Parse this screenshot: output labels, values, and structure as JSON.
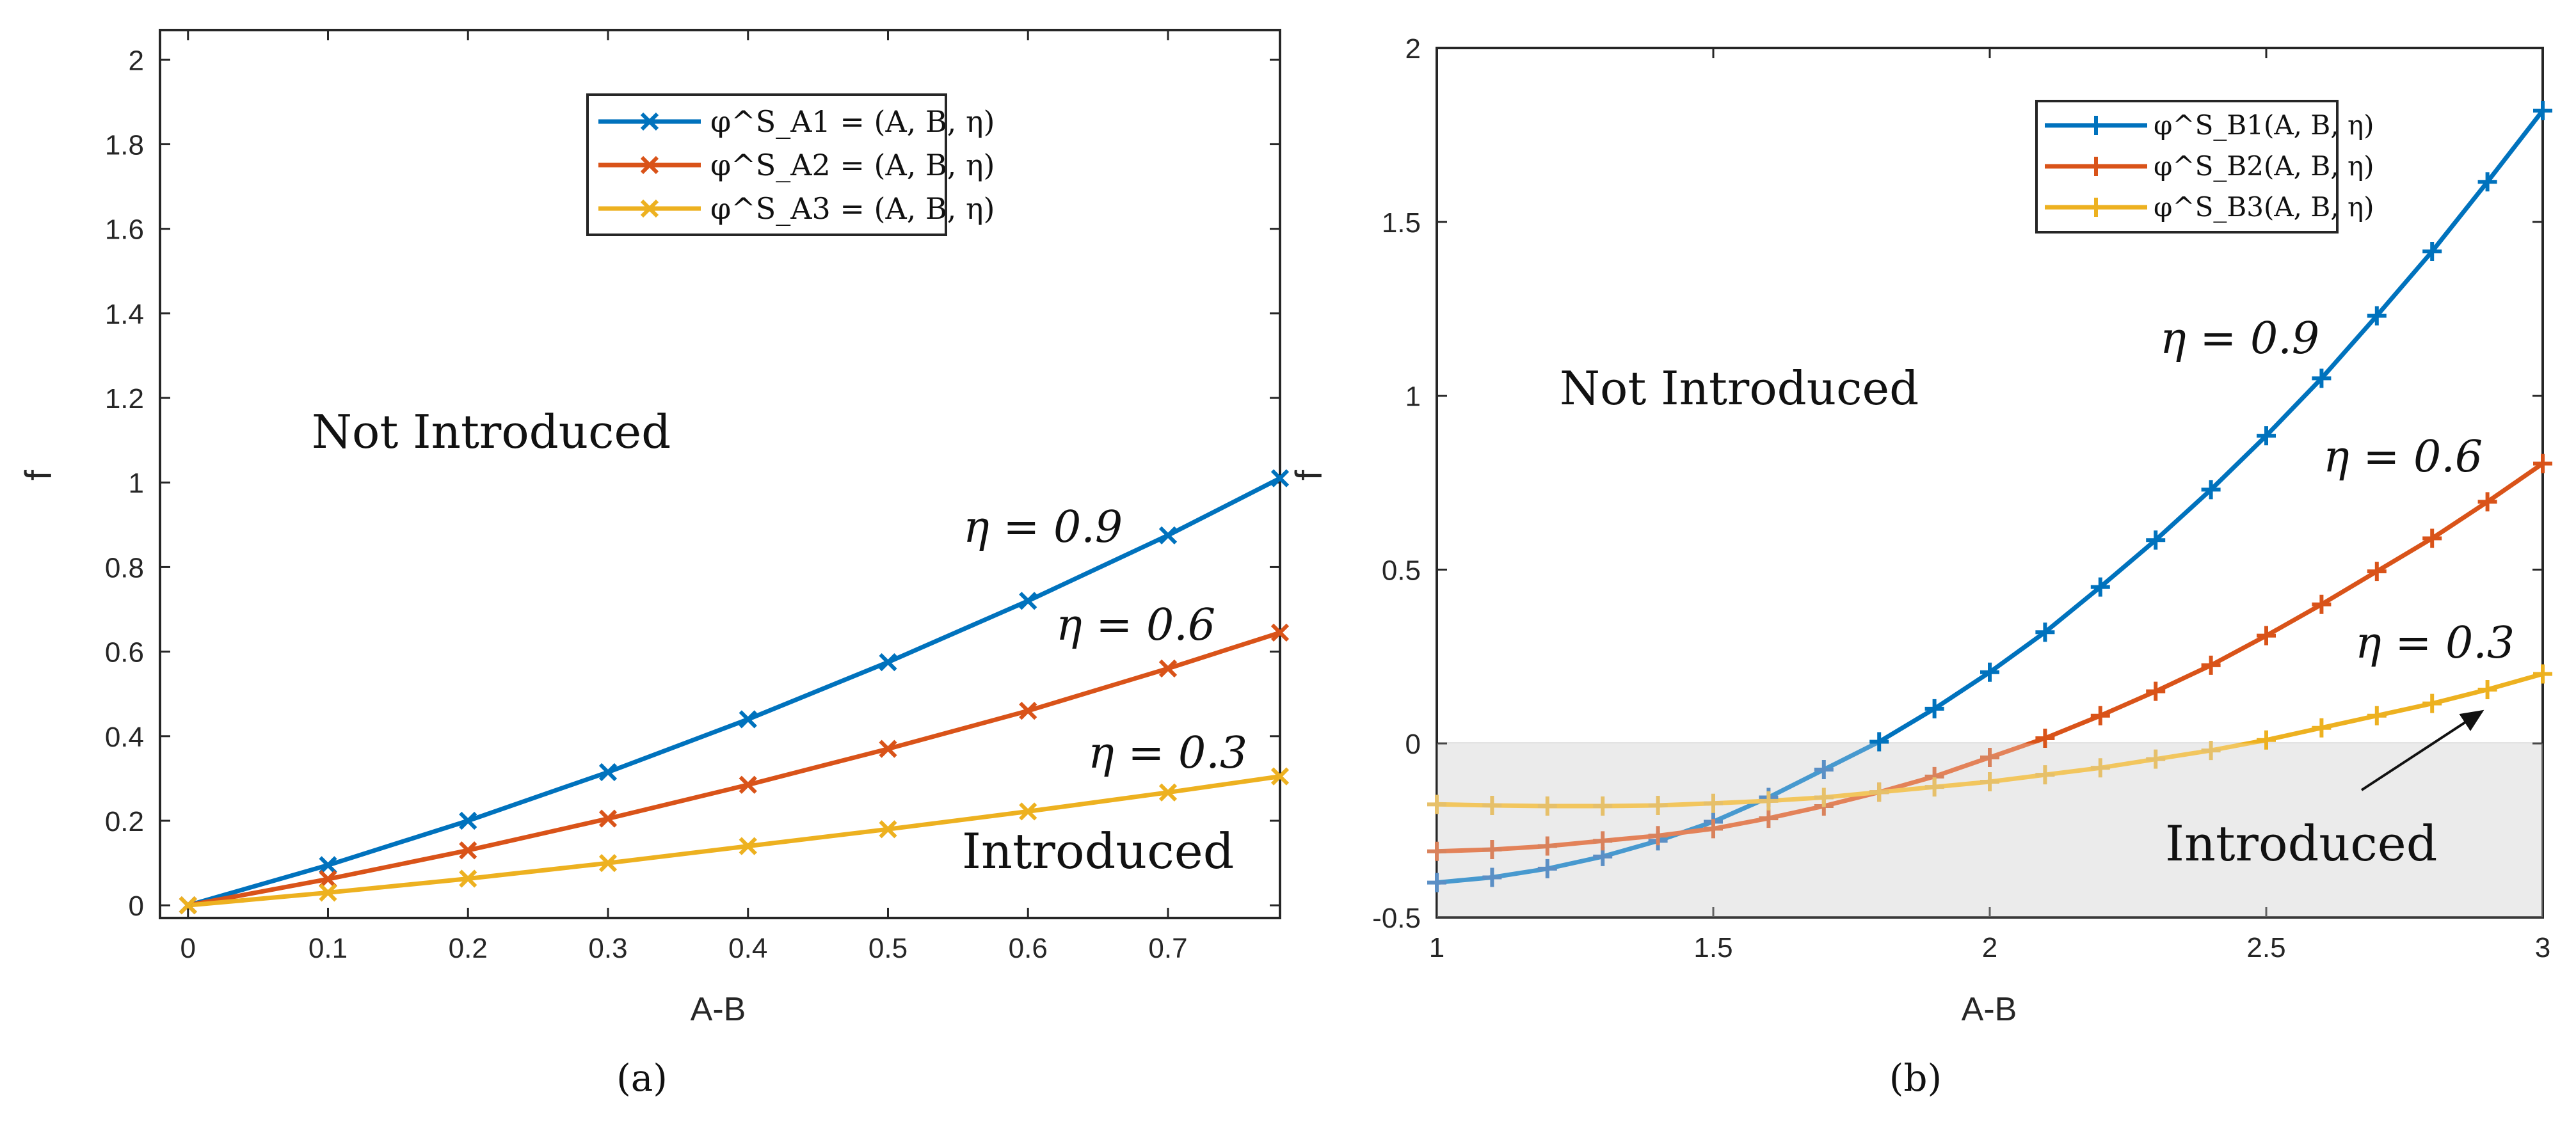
{
  "colors": {
    "blue": "#0072BD",
    "orange": "#D95319",
    "yellow": "#EDB120",
    "axis": "#262626",
    "shade": "#E3E3E3",
    "blue_shaded": "#5B8FC5",
    "orange_shaded": "#D9825C",
    "yellow_shaded": "#E6C06A"
  },
  "chart_data": [
    {
      "type": "line",
      "panel_caption": "(a)",
      "xlabel": "A-B",
      "ylabel": "f",
      "xlim": [
        -0.02,
        0.78
      ],
      "ylim": [
        -0.03,
        2.07
      ],
      "xticks": [
        0,
        0.1,
        0.2,
        0.3,
        0.4,
        0.5,
        0.6,
        0.7
      ],
      "xtick_labels": [
        "0",
        "0.1",
        "0.2",
        "0.3",
        "0.4",
        "0.5",
        "0.6",
        "0.7"
      ],
      "yticks": [
        0,
        0.2,
        0.4,
        0.6,
        0.8,
        1,
        1.2,
        1.4,
        1.6,
        1.8,
        2
      ],
      "ytick_labels": [
        "0",
        "0.2",
        "0.4",
        "0.6",
        "0.8",
        "1",
        "1.2",
        "1.4",
        "1.6",
        "1.8",
        "2"
      ],
      "marker": "x",
      "x": [
        0,
        0.1,
        0.2,
        0.3,
        0.4,
        0.5,
        0.6,
        0.7,
        0.78
      ],
      "series": [
        {
          "name": "φ^S_A1 = (A, B, η)",
          "color_key": "blue",
          "values": [
            0,
            0.095,
            0.2,
            0.315,
            0.44,
            0.575,
            0.72,
            0.875,
            1.01
          ]
        },
        {
          "name": "φ^S_A2 = (A, B, η)",
          "color_key": "orange",
          "values": [
            0,
            0.062,
            0.13,
            0.205,
            0.285,
            0.37,
            0.46,
            0.56,
            0.645
          ]
        },
        {
          "name": "φ^S_A3 = (A, B, η)",
          "color_key": "yellow",
          "values": [
            0,
            0.03,
            0.063,
            0.1,
            0.14,
            0.18,
            0.222,
            0.267,
            0.305
          ]
        }
      ],
      "annotations": [
        "Not Introduced",
        "η = 0.9",
        "η = 0.6",
        "η = 0.3",
        "Introduced"
      ],
      "legend_placement": "top-center"
    },
    {
      "type": "line",
      "panel_caption": "(b)",
      "xlabel": "A-B",
      "ylabel": "f",
      "xlim": [
        1,
        3
      ],
      "ylim": [
        -0.5,
        2
      ],
      "xticks": [
        1,
        1.5,
        2,
        2.5,
        3
      ],
      "xtick_labels": [
        "1",
        "1.5",
        "2",
        "2.5",
        "3"
      ],
      "yticks": [
        -0.5,
        0,
        0.5,
        1,
        1.5,
        2
      ],
      "ytick_labels": [
        "-0.5",
        "0",
        "0.5",
        "1",
        "1.5",
        "2"
      ],
      "marker": "+",
      "shaded_region": {
        "y_from": -0.5,
        "y_to": 0
      },
      "x": [
        1,
        1.1,
        1.2,
        1.3,
        1.4,
        1.5,
        1.6,
        1.7,
        1.8,
        1.9,
        2,
        2.1,
        2.2,
        2.3,
        2.4,
        2.5,
        2.6,
        2.7,
        2.8,
        2.9,
        3
      ],
      "series": [
        {
          "name": "φ^S_B1(A, B, η)",
          "color_key": "blue",
          "values": [
            -0.4,
            -0.385,
            -0.36,
            -0.325,
            -0.28,
            -0.225,
            -0.155,
            -0.075,
            0.005,
            0.1,
            0.205,
            0.32,
            0.45,
            0.585,
            0.73,
            0.885,
            1.05,
            1.23,
            1.415,
            1.615,
            1.82
          ]
        },
        {
          "name": "φ^S_B2(A, B, η)",
          "color_key": "orange",
          "values": [
            -0.31,
            -0.305,
            -0.295,
            -0.28,
            -0.265,
            -0.245,
            -0.215,
            -0.18,
            -0.14,
            -0.095,
            -0.04,
            0.015,
            0.08,
            0.15,
            0.225,
            0.31,
            0.4,
            0.495,
            0.59,
            0.695,
            0.805
          ]
        },
        {
          "name": "φ^S_B3(A, B, η)",
          "color_key": "yellow",
          "values": [
            -0.175,
            -0.178,
            -0.18,
            -0.18,
            -0.178,
            -0.172,
            -0.165,
            -0.155,
            -0.14,
            -0.125,
            -0.11,
            -0.09,
            -0.07,
            -0.045,
            -0.02,
            0.01,
            0.045,
            0.08,
            0.115,
            0.155,
            0.2
          ]
        }
      ],
      "annotations": [
        "Not Introduced",
        "η = 0.9",
        "η = 0.6",
        "η = 0.3",
        "Introduced"
      ],
      "legend_placement": "top-right"
    }
  ]
}
